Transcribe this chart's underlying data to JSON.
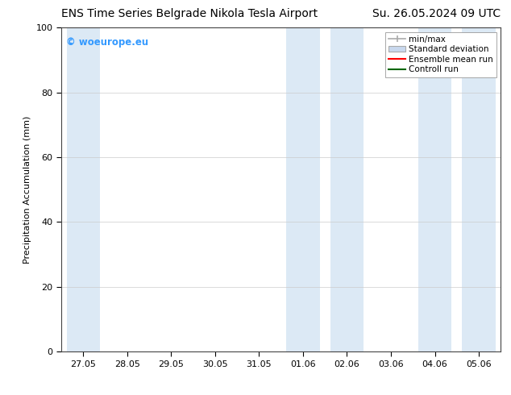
{
  "title_left": "ENS Time Series Belgrade Nikola Tesla Airport",
  "title_right": "Su. 26.05.2024 09 UTC",
  "ylabel": "Precipitation Accumulation (mm)",
  "ylim": [
    0,
    100
  ],
  "yticks": [
    0,
    20,
    40,
    60,
    80,
    100
  ],
  "xtick_labels": [
    "27.05",
    "28.05",
    "29.05",
    "30.05",
    "31.05",
    "01.06",
    "02.06",
    "03.06",
    "04.06",
    "05.06"
  ],
  "background_color": "#ffffff",
  "plot_bg_color": "#ffffff",
  "shade_color": "#dce9f5",
  "watermark_text": "© woeurope.eu",
  "watermark_color": "#3399ff",
  "legend_items": [
    {
      "label": "min/max",
      "color": "#aaaaaa",
      "type": "errorbar"
    },
    {
      "label": "Standard deviation",
      "color": "#c8d8ee",
      "type": "bar"
    },
    {
      "label": "Ensemble mean run",
      "color": "#ff0000",
      "type": "line"
    },
    {
      "label": "Controll run",
      "color": "#006600",
      "type": "line"
    }
  ],
  "title_fontsize": 10,
  "axis_fontsize": 8,
  "tick_fontsize": 8
}
